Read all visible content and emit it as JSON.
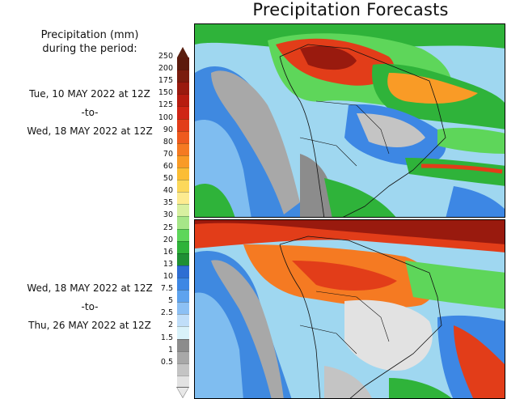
{
  "title": "Precipitation Forecasts",
  "legend": {
    "title_line1": "Precipitation (mm)",
    "title_line2": "during the period:",
    "levels": [
      "250",
      "200",
      "175",
      "150",
      "125",
      "100",
      "90",
      "80",
      "70",
      "60",
      "50",
      "40",
      "35",
      "30",
      "25",
      "20",
      "16",
      "13",
      "10",
      "7.5",
      "5",
      "2.5",
      "2",
      "1.5",
      "1",
      "0.5"
    ],
    "colors": [
      "#5c1a0c",
      "#7a1c0e",
      "#991a0e",
      "#b71c10",
      "#cf2515",
      "#e23d19",
      "#ee5a1e",
      "#f57a22",
      "#f99b26",
      "#fbbd34",
      "#fcd85a",
      "#fdeb90",
      "#d8f0a0",
      "#a6e688",
      "#5ed65a",
      "#2fb33a",
      "#1f8f35",
      "#2e6ed3",
      "#3d87e4",
      "#5ea3ee",
      "#8cc0f4",
      "#c0def9",
      "#d9f2fa",
      "#8c8c8c",
      "#a8a8a8",
      "#c4c4c4",
      "#e2e2e2"
    ]
  },
  "periods": [
    {
      "start": "Tue, 10 MAY 2022 at 12Z",
      "sep": "-to-",
      "end": "Wed, 18 MAY 2022 at 12Z"
    },
    {
      "start": "Wed, 18 MAY 2022 at 12Z",
      "sep": "-to-",
      "end": "Thu, 26 MAY 2022 at 12Z"
    }
  ]
}
